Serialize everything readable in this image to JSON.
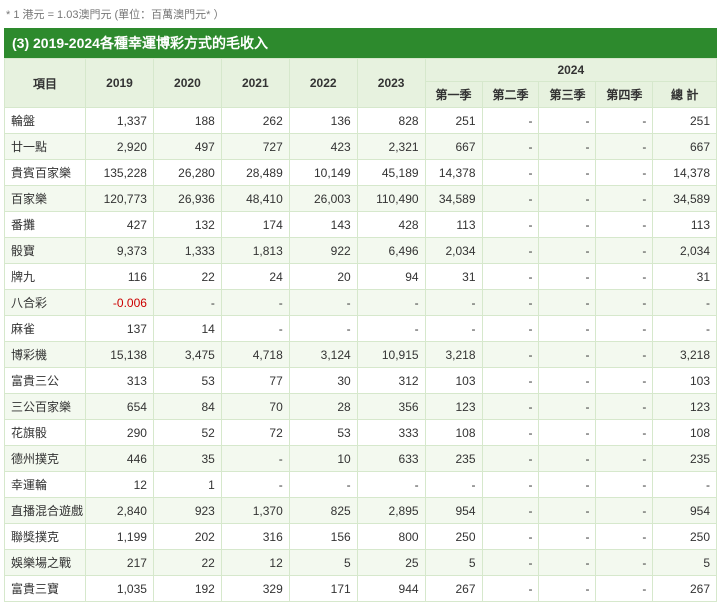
{
  "note": "* 1 港元 = 1.03澳門元 (單位：百萬澳門元* ）",
  "title": "(3) 2019-2024各種幸運博彩方式的毛收入",
  "header": {
    "item": "項目",
    "years": [
      "2019",
      "2020",
      "2021",
      "2022",
      "2023"
    ],
    "year_group": "2024",
    "quarters": [
      "第一季",
      "第二季",
      "第三季",
      "第四季",
      "總 計"
    ]
  },
  "rows": [
    {
      "name": "輪盤",
      "y": [
        "1,337",
        "188",
        "262",
        "136",
        "828"
      ],
      "q": [
        "251",
        "-",
        "-",
        "-",
        "251"
      ]
    },
    {
      "name": "廿一點",
      "y": [
        "2,920",
        "497",
        "727",
        "423",
        "2,321"
      ],
      "q": [
        "667",
        "-",
        "-",
        "-",
        "667"
      ]
    },
    {
      "name": "貴賓百家樂",
      "y": [
        "135,228",
        "26,280",
        "28,489",
        "10,149",
        "45,189"
      ],
      "q": [
        "14,378",
        "-",
        "-",
        "-",
        "14,378"
      ]
    },
    {
      "name": "百家樂",
      "y": [
        "120,773",
        "26,936",
        "48,410",
        "26,003",
        "110,490"
      ],
      "q": [
        "34,589",
        "-",
        "-",
        "-",
        "34,589"
      ]
    },
    {
      "name": "番攤",
      "y": [
        "427",
        "132",
        "174",
        "143",
        "428"
      ],
      "q": [
        "113",
        "-",
        "-",
        "-",
        "113"
      ]
    },
    {
      "name": "骰寶",
      "y": [
        "9,373",
        "1,333",
        "1,813",
        "922",
        "6,496"
      ],
      "q": [
        "2,034",
        "-",
        "-",
        "-",
        "2,034"
      ]
    },
    {
      "name": "牌九",
      "y": [
        "116",
        "22",
        "24",
        "20",
        "94"
      ],
      "q": [
        "31",
        "-",
        "-",
        "-",
        "31"
      ]
    },
    {
      "name": "八合彩",
      "y": [
        "-0.006",
        "-",
        "-",
        "-",
        "-"
      ],
      "q": [
        "-",
        "-",
        "-",
        "-",
        "-"
      ],
      "neg0": true
    },
    {
      "name": "麻雀",
      "y": [
        "137",
        "14",
        "-",
        "-",
        "-"
      ],
      "q": [
        "-",
        "-",
        "-",
        "-",
        "-"
      ]
    },
    {
      "name": "博彩機",
      "y": [
        "15,138",
        "3,475",
        "4,718",
        "3,124",
        "10,915"
      ],
      "q": [
        "3,218",
        "-",
        "-",
        "-",
        "3,218"
      ]
    },
    {
      "name": "富貴三公",
      "y": [
        "313",
        "53",
        "77",
        "30",
        "312"
      ],
      "q": [
        "103",
        "-",
        "-",
        "-",
        "103"
      ]
    },
    {
      "name": "三公百家樂",
      "y": [
        "654",
        "84",
        "70",
        "28",
        "356"
      ],
      "q": [
        "123",
        "-",
        "-",
        "-",
        "123"
      ]
    },
    {
      "name": "花旗骰",
      "y": [
        "290",
        "52",
        "72",
        "53",
        "333"
      ],
      "q": [
        "108",
        "-",
        "-",
        "-",
        "108"
      ]
    },
    {
      "name": "德州撲克",
      "y": [
        "446",
        "35",
        "-",
        "10",
        "633"
      ],
      "q": [
        "235",
        "-",
        "-",
        "-",
        "235"
      ]
    },
    {
      "name": "幸運輪",
      "y": [
        "12",
        "1",
        "-",
        "-",
        "-"
      ],
      "q": [
        "-",
        "-",
        "-",
        "-",
        "-"
      ]
    },
    {
      "name": "直播混合遊戲",
      "y": [
        "2,840",
        "923",
        "1,370",
        "825",
        "2,895"
      ],
      "q": [
        "954",
        "-",
        "-",
        "-",
        "954"
      ]
    },
    {
      "name": "聯獎撲克",
      "y": [
        "1,199",
        "202",
        "316",
        "156",
        "800"
      ],
      "q": [
        "250",
        "-",
        "-",
        "-",
        "250"
      ]
    },
    {
      "name": "娛樂場之戰",
      "y": [
        "217",
        "22",
        "12",
        "5",
        "25"
      ],
      "q": [
        "5",
        "-",
        "-",
        "-",
        "5"
      ]
    },
    {
      "name": "富貴三寶",
      "y": [
        "1,035",
        "192",
        "329",
        "171",
        "944"
      ],
      "q": [
        "267",
        "-",
        "-",
        "-",
        "267"
      ]
    }
  ]
}
